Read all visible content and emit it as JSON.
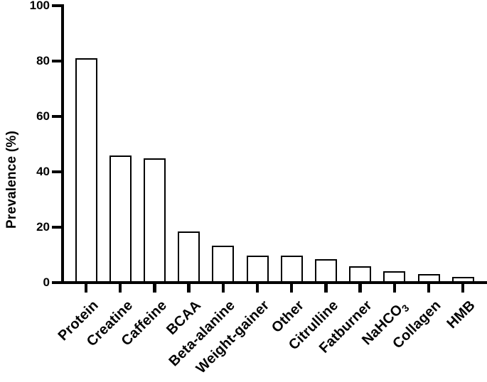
{
  "figure": {
    "background_color": "#ffffff",
    "line_color": "#000000",
    "bar_fill_color": "#ffffff",
    "bar_border_color": "#000000"
  },
  "chart_data": {
    "type": "bar",
    "title": "",
    "xlabel": "",
    "ylabel": "Prevalence (%)",
    "ylim": [
      0,
      100
    ],
    "yticks": [
      0,
      20,
      40,
      60,
      80,
      100
    ],
    "grid": false,
    "legend": false,
    "bar_style": "open (white fill, black outline)",
    "x_label_rotation_deg": 45,
    "categories": [
      {
        "label": "Protein"
      },
      {
        "label": "Creatine"
      },
      {
        "label": "Caffeine"
      },
      {
        "label": "BCAA"
      },
      {
        "label": "Beta-alanine"
      },
      {
        "label": "Weight-gainer"
      },
      {
        "label": "Other"
      },
      {
        "label": "Citrulline"
      },
      {
        "label": "Fatburner"
      },
      {
        "label": "NaHCO",
        "sub": "3"
      },
      {
        "label": "Collagen"
      },
      {
        "label": "HMB"
      }
    ],
    "values": [
      81,
      46,
      45,
      18.5,
      13.4,
      9.7,
      9.7,
      8.4,
      6,
      4,
      3,
      2
    ]
  }
}
